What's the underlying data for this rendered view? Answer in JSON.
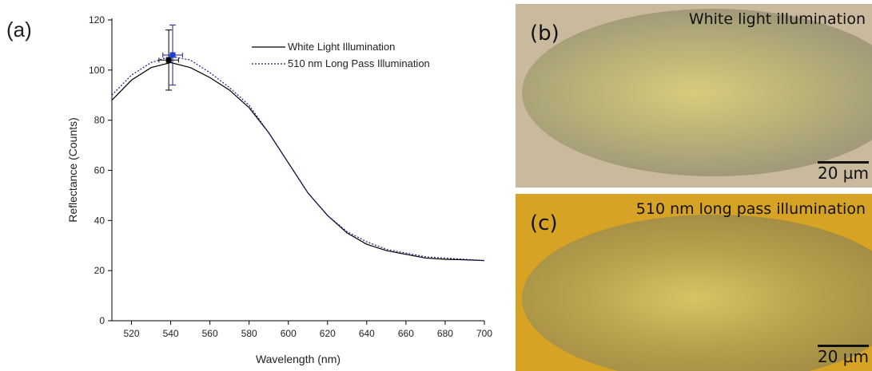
{
  "chart_data": {
    "type": "line",
    "panel_label": "(a)",
    "xlabel": "Wavelength (nm)",
    "ylabel": "Reflectance (Counts)",
    "x": [
      510,
      520,
      530,
      540,
      550,
      560,
      570,
      580,
      590,
      600,
      610,
      620,
      630,
      640,
      650,
      660,
      670,
      680,
      690,
      700
    ],
    "series": [
      {
        "name": "White Light Illumination",
        "color": "#000000",
        "dash": "solid",
        "values": [
          88,
          96,
          101,
          103,
          101,
          97,
          92,
          85,
          75,
          63,
          51,
          42,
          35,
          30.5,
          28,
          26.5,
          25,
          24.5,
          24.3,
          24
        ],
        "error_point": {
          "x": 539,
          "y": 104,
          "xerr": 5,
          "yerr": 12
        }
      },
      {
        "name": "510 nm Long Pass Illumination",
        "color": "#1a1a8c",
        "dash": "dotted",
        "values": [
          90,
          98,
          103,
          105.5,
          104,
          99,
          93,
          86,
          75,
          63,
          51,
          42,
          35.5,
          31.5,
          28.5,
          27,
          25.5,
          25,
          24.5,
          24
        ],
        "error_point": {
          "x": 541,
          "y": 106,
          "xerr": 5,
          "yerr": 12
        }
      }
    ],
    "xlim": [
      510,
      700
    ],
    "xticks": [
      520,
      540,
      560,
      580,
      600,
      620,
      640,
      660,
      680,
      700
    ],
    "ylim": [
      0,
      120
    ],
    "yticks": [
      0,
      20,
      40,
      60,
      80,
      100,
      120
    ],
    "grid": false,
    "legend": "upper right"
  },
  "panels": [
    {
      "label": "(b)",
      "caption": "White light illumination",
      "scale_bar": "20 µm"
    },
    {
      "label": "(c)",
      "caption": "510 nm long pass illumination",
      "scale_bar": "20 µm"
    }
  ]
}
